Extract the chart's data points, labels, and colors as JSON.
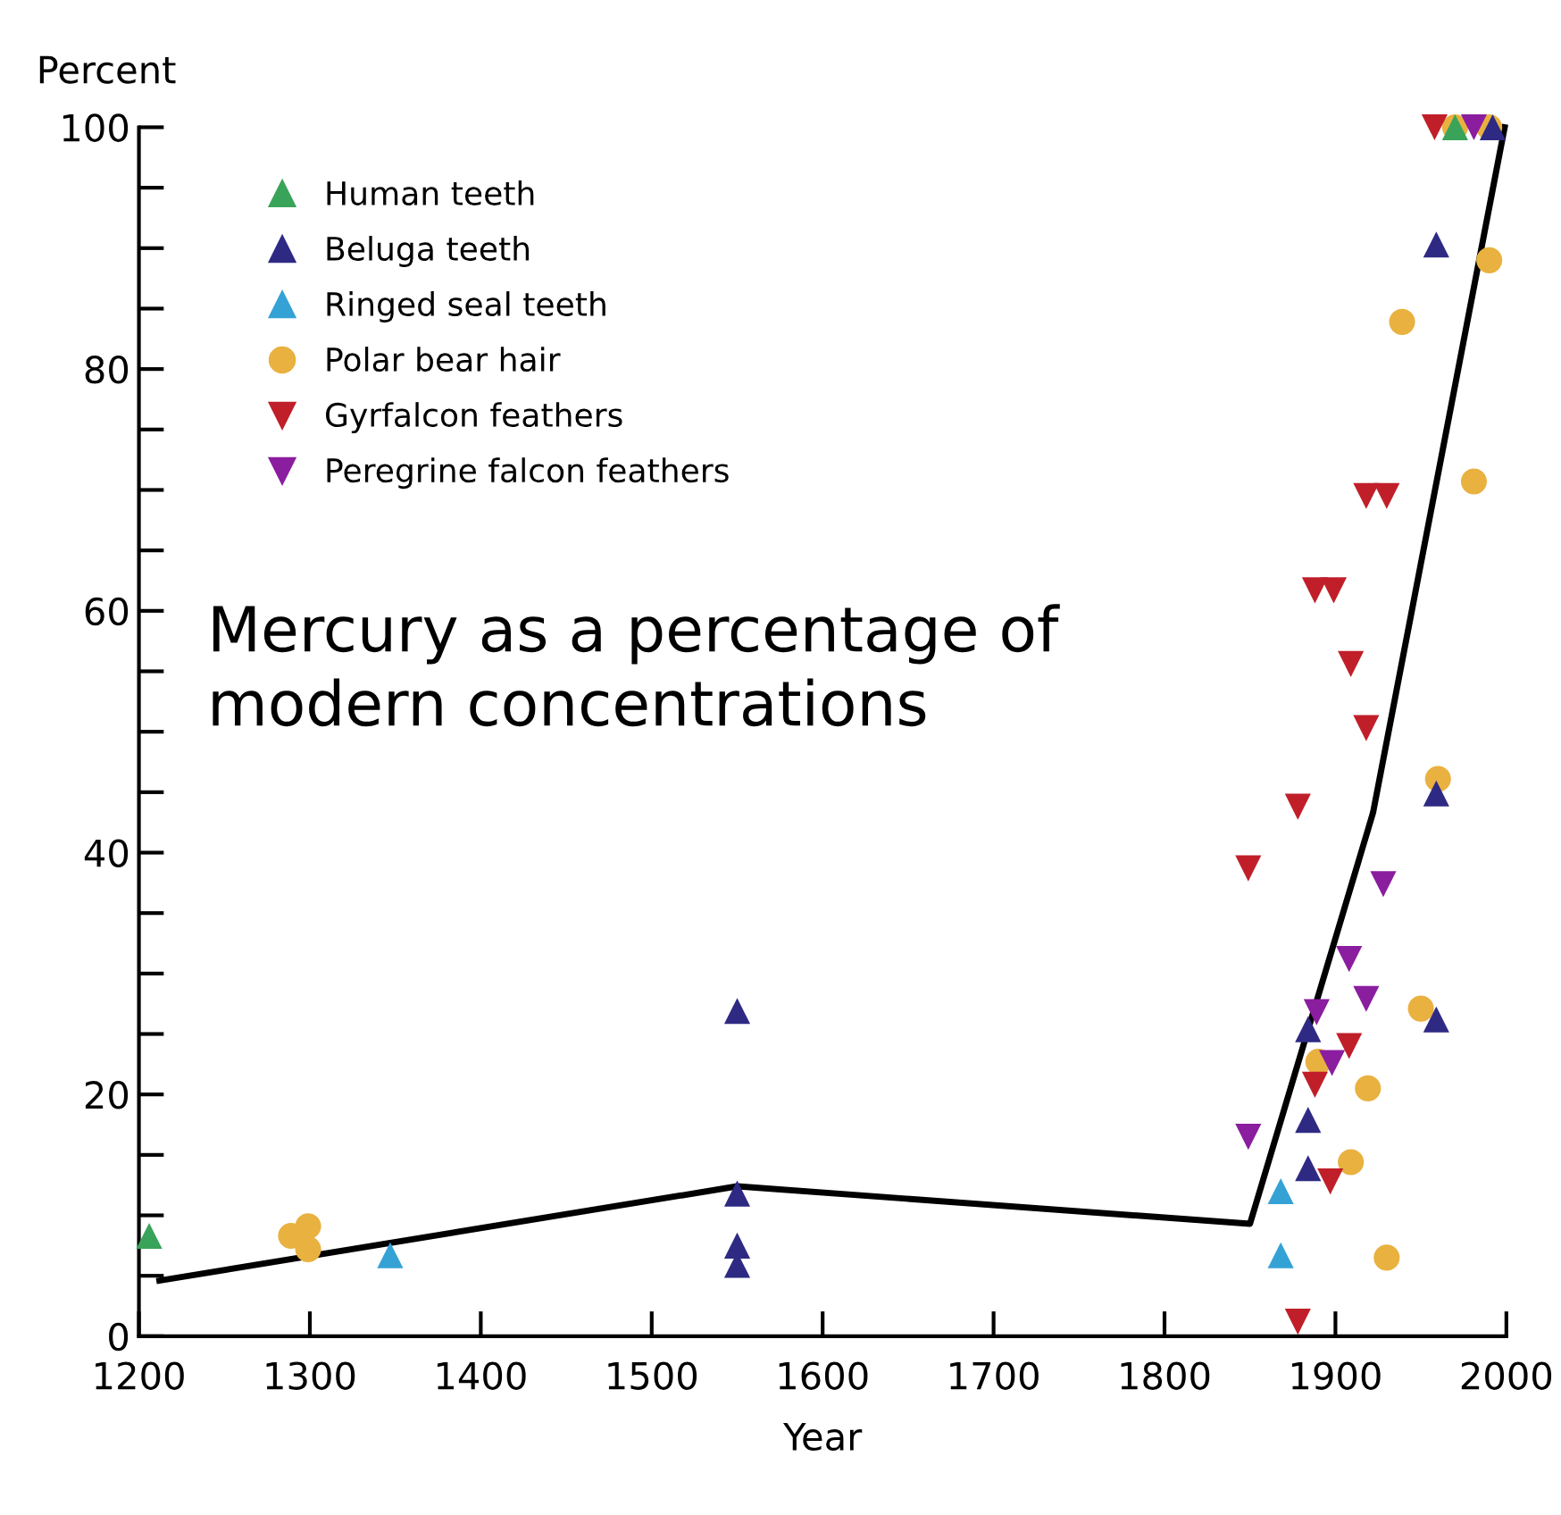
{
  "chart_data": {
    "type": "scatter",
    "xlabel": "Year",
    "ylabel": "Percent",
    "annotations": [
      "Mercury as a percentage of\nmodern concentrations"
    ],
    "xlim": [
      1200,
      2000
    ],
    "xticks": [
      1200,
      1300,
      1400,
      1500,
      1600,
      1700,
      1800,
      1900,
      2000
    ],
    "ylim": [
      0,
      100
    ],
    "yticks": [
      0,
      {
        "value": 5,
        "label": null
      },
      {
        "value": 10,
        "label": null
      },
      {
        "value": 15,
        "label": null
      },
      20,
      {
        "value": 25,
        "label": null
      },
      {
        "value": 30,
        "label": null
      },
      {
        "value": 35,
        "label": null
      },
      40,
      {
        "value": 45,
        "label": null
      },
      {
        "value": 50,
        "label": null
      },
      {
        "value": 55,
        "label": null
      },
      60,
      {
        "value": 65,
        "label": null
      },
      {
        "value": 70,
        "label": null
      },
      {
        "value": 75,
        "label": null
      },
      80,
      {
        "value": 85,
        "label": null
      },
      {
        "value": 90,
        "label": null
      },
      {
        "value": 95,
        "label": null
      },
      100
    ],
    "grid": false,
    "legend": "top left",
    "series": [
      {
        "type": "line",
        "color": "#000000",
        "marker": "none",
        "line_style": "solid",
        "x": [
          1212,
          1550,
          1850,
          1922,
          1999
        ],
        "values": [
          4.6,
          12.4,
          9.3,
          43.3,
          100
        ]
      },
      {
        "name": "Human teeth",
        "color": "#3aa35a",
        "marker": "triangle",
        "x": [
          1206,
          1970
        ],
        "values": [
          8.3,
          100
        ]
      },
      {
        "name": "Beluga teeth",
        "color": "#2e2a84",
        "marker": "triangle",
        "x": [
          1550,
          1550,
          1550,
          1550,
          1884,
          1884,
          1884,
          1959,
          1959,
          1959,
          1992
        ],
        "values": [
          26.9,
          11.8,
          7.5,
          5.9,
          25.4,
          17.9,
          13.9,
          44.9,
          26.2,
          90.3,
          100
        ]
      },
      {
        "name": "Ringed seal teeth",
        "color": "#35a2d6",
        "marker": "triangle",
        "x": [
          1347,
          1868,
          1868
        ],
        "values": [
          6.7,
          12.0,
          6.7
        ]
      },
      {
        "name": "Polar bear hair",
        "color": "#e9b13f",
        "marker": "circle",
        "x": [
          1289,
          1299,
          1299,
          1970,
          1990,
          1990,
          1939,
          1981,
          1960,
          1950,
          1890,
          1919,
          1909,
          1930
        ],
        "values": [
          8.3,
          9.1,
          7.2,
          100,
          100,
          89,
          83.9,
          70.7,
          46.1,
          27.1,
          22.7,
          20.5,
          14.4,
          6.5
        ]
      },
      {
        "name": "Gyrfalcon feathers",
        "color": "#c01f2a",
        "marker": "triangle-down",
        "x": [
          1958,
          1918,
          1930,
          1888,
          1899,
          1909,
          1918,
          1878,
          1849,
          1908,
          1888,
          1897,
          1878
        ],
        "values": [
          100,
          69.5,
          69.5,
          61.7,
          61.7,
          55.6,
          50.3,
          43.8,
          38.7,
          24.0,
          20.8,
          12.8,
          1.2
        ]
      },
      {
        "name": "Peregrine falcon feathers",
        "color": "#8b1d9f",
        "marker": "triangle-down",
        "x": [
          1981,
          1928,
          1908,
          1918,
          1889,
          1898,
          1849
        ],
        "values": [
          100,
          37.4,
          31.2,
          27.9,
          26.8,
          22.6,
          16.5
        ]
      }
    ]
  }
}
